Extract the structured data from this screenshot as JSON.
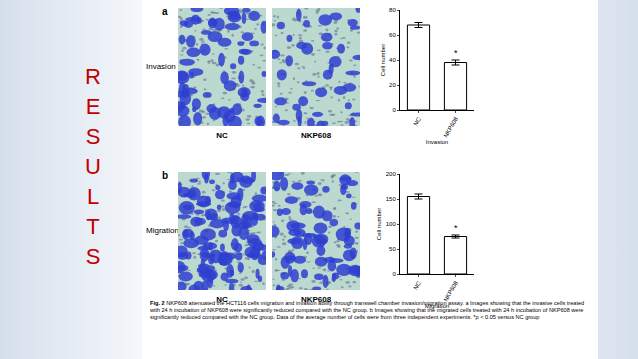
{
  "side_title": "RESULTS",
  "panels": [
    {
      "label": "a",
      "row_label": "Invasion",
      "image_labels": [
        "NC",
        "NKP608"
      ]
    },
    {
      "label": "b",
      "row_label": "Migration",
      "image_labels": [
        "NC",
        "NKP608"
      ]
    }
  ],
  "chart_data": [
    {
      "type": "bar",
      "x_label": "Invasion",
      "y_label": "Cell number",
      "categories": [
        "NC",
        "NKP608"
      ],
      "values": [
        68,
        38
      ],
      "errors": [
        2,
        2
      ],
      "color": "#ffffff",
      "ylim": [
        0,
        80
      ],
      "yticks": [
        0,
        20,
        40,
        60,
        80
      ],
      "grid": false,
      "annotations": [
        {
          "category": "NKP608",
          "text": "*"
        }
      ]
    },
    {
      "type": "bar",
      "x_label": "Migration",
      "y_label": "Cell number",
      "categories": [
        "NC",
        "NKP608"
      ],
      "values": [
        155,
        75
      ],
      "errors": [
        5,
        3
      ],
      "color": "#ffffff",
      "ylim": [
        0,
        200
      ],
      "yticks": [
        0,
        50,
        100,
        150,
        200
      ],
      "grid": false,
      "annotations": [
        {
          "category": "NKP608",
          "text": "*"
        }
      ]
    }
  ],
  "caption": {
    "label": "Fig. 2",
    "text": "NKP608 attenuated the HCT116 cells migration and invasion ability through transwell chamber invasion/migration assay. a Images showing that the invasive cells treated with 24 h incubation of NKP608 were significantly reduced compared with the NC group. b Images showing that the migrated cells treated with 24 h incubation of NKP608 were significantly reduced compared with the NC group. Data of the average number of cells were from three independent experiments. *p < 0.05 versus NC group"
  }
}
